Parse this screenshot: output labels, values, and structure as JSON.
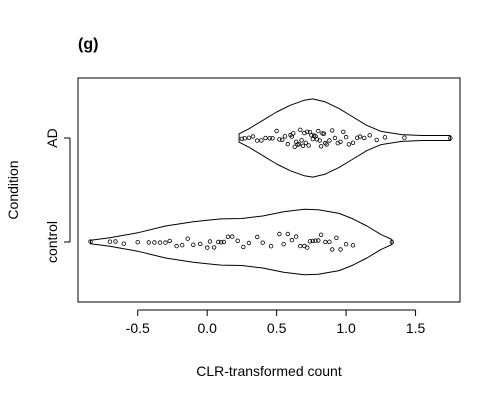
{
  "chart_data": {
    "type": "violin-strip",
    "panel_label": "(g)",
    "xlabel": "CLR-transformed count",
    "ylabel": "Condition",
    "xlim": [
      -0.93,
      1.82
    ],
    "x_ticks": [
      -0.5,
      0.0,
      0.5,
      1.0,
      1.5
    ],
    "x_tick_labels": [
      "-0.5",
      "0.0",
      "0.5",
      "1.0",
      "1.5"
    ],
    "categories": [
      "control",
      "AD"
    ],
    "grid": false,
    "groups": [
      {
        "category": "AD",
        "range": [
          0.23,
          1.75
        ],
        "density_profile": [
          [
            0.23,
            0.1
          ],
          [
            0.3,
            0.22
          ],
          [
            0.4,
            0.42
          ],
          [
            0.5,
            0.62
          ],
          [
            0.6,
            0.78
          ],
          [
            0.7,
            0.9
          ],
          [
            0.76,
            0.93
          ],
          [
            0.85,
            0.86
          ],
          [
            0.95,
            0.7
          ],
          [
            1.05,
            0.5
          ],
          [
            1.15,
            0.3
          ],
          [
            1.25,
            0.16
          ],
          [
            1.4,
            0.08
          ],
          [
            1.55,
            0.06
          ],
          [
            1.75,
            0.06
          ]
        ],
        "points": [
          0.25,
          0.27,
          0.3,
          0.33,
          0.36,
          0.39,
          0.42,
          0.45,
          0.47,
          0.5,
          0.52,
          0.54,
          0.56,
          0.58,
          0.6,
          0.61,
          0.62,
          0.63,
          0.64,
          0.65,
          0.66,
          0.67,
          0.68,
          0.69,
          0.7,
          0.71,
          0.72,
          0.73,
          0.74,
          0.75,
          0.76,
          0.77,
          0.78,
          0.79,
          0.8,
          0.81,
          0.82,
          0.83,
          0.84,
          0.85,
          0.86,
          0.88,
          0.9,
          0.92,
          0.94,
          0.96,
          0.98,
          1.0,
          1.02,
          1.05,
          1.08,
          1.1,
          1.13,
          1.17,
          1.22,
          1.28,
          1.42,
          1.75
        ]
      },
      {
        "category": "control",
        "range": [
          -0.84,
          1.33
        ],
        "density_profile": [
          [
            -0.84,
            0.04
          ],
          [
            -0.7,
            0.1
          ],
          [
            -0.5,
            0.22
          ],
          [
            -0.3,
            0.38
          ],
          [
            -0.1,
            0.48
          ],
          [
            0.0,
            0.52
          ],
          [
            0.1,
            0.55
          ],
          [
            0.25,
            0.56
          ],
          [
            0.4,
            0.62
          ],
          [
            0.55,
            0.72
          ],
          [
            0.7,
            0.78
          ],
          [
            0.8,
            0.77
          ],
          [
            0.95,
            0.68
          ],
          [
            1.05,
            0.55
          ],
          [
            1.15,
            0.38
          ],
          [
            1.25,
            0.18
          ],
          [
            1.33,
            0.06
          ]
        ],
        "points": [
          -0.84,
          -0.7,
          -0.66,
          -0.6,
          -0.5,
          -0.42,
          -0.38,
          -0.34,
          -0.3,
          -0.27,
          -0.22,
          -0.18,
          -0.14,
          -0.1,
          -0.05,
          0.0,
          0.02,
          0.05,
          0.08,
          0.1,
          0.12,
          0.15,
          0.18,
          0.22,
          0.26,
          0.3,
          0.36,
          0.4,
          0.46,
          0.52,
          0.55,
          0.58,
          0.61,
          0.64,
          0.67,
          0.7,
          0.72,
          0.74,
          0.76,
          0.78,
          0.8,
          0.82,
          0.85,
          0.88,
          0.9,
          0.93,
          0.96,
          1.0,
          1.05,
          1.33
        ]
      }
    ]
  }
}
